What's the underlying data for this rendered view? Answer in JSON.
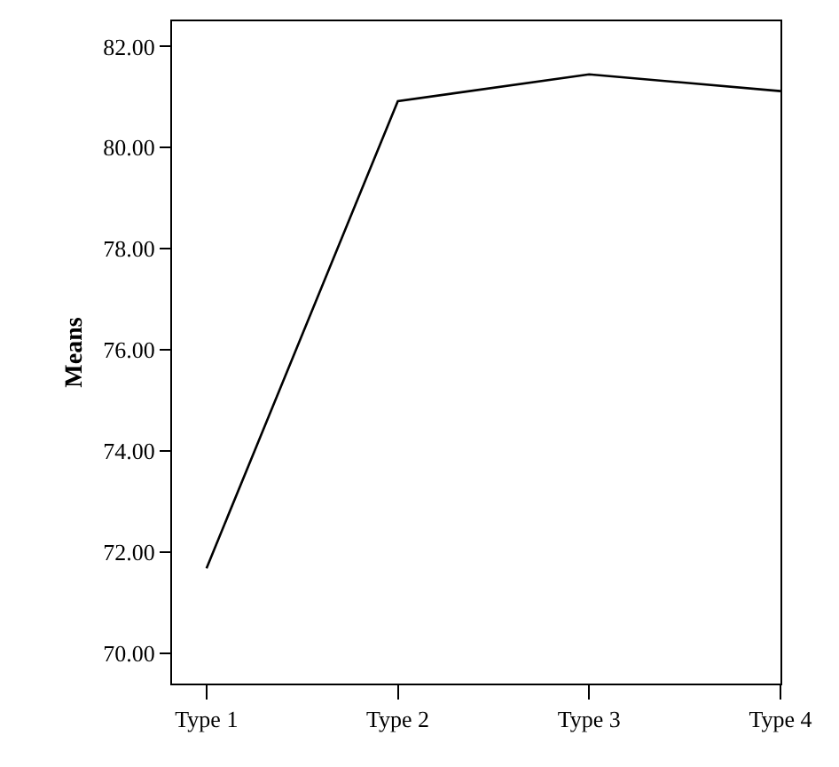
{
  "chart_data": {
    "type": "line",
    "ylabel": "Means",
    "categories": [
      "Type 1",
      "Type 2",
      "Type 3",
      "Type 4"
    ],
    "series": [
      {
        "color": "#000000",
        "values": [
          71.68,
          80.92,
          81.45,
          81.12
        ]
      }
    ],
    "ylim": [
      69.4,
      82.5
    ],
    "yticks": [
      {
        "value": 70,
        "label": "70.00"
      },
      {
        "value": 72,
        "label": "72.00"
      },
      {
        "value": 74,
        "label": "74.00"
      },
      {
        "value": 76,
        "label": "76.00"
      },
      {
        "value": 78,
        "label": "78.00"
      },
      {
        "value": 80,
        "label": "80.00"
      },
      {
        "value": 82,
        "label": "82.00"
      }
    ],
    "legend": false,
    "marker": "none",
    "line_style": "solid"
  }
}
